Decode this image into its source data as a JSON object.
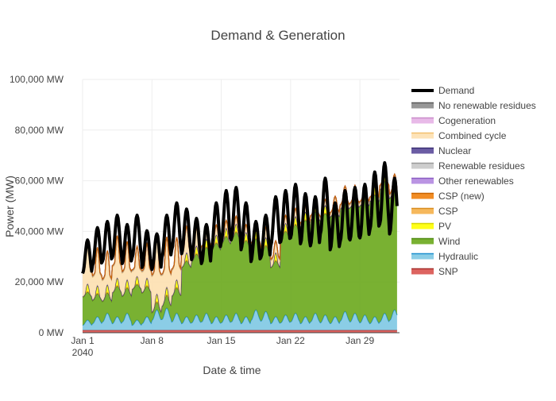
{
  "chart_data": {
    "type": "area",
    "title": "Demand & Generation",
    "xlabel": "Date & time",
    "ylabel": "Power (MW)",
    "ylim": [
      0,
      100000
    ],
    "yticks": [
      0,
      20000,
      40000,
      60000,
      80000,
      100000
    ],
    "ytick_labels": [
      "0 MW",
      "20,000 MW",
      "40,000 MW",
      "60,000 MW",
      "80,000 MW",
      "100,000 MW"
    ],
    "xlim": [
      "2040-01-01",
      "2040-02-02"
    ],
    "xticks": [
      "2040-01-01",
      "2040-01-08",
      "2040-01-15",
      "2040-01-22",
      "2040-01-29"
    ],
    "xtick_labels": [
      "Jan 1",
      "Jan 8",
      "Jan 15",
      "Jan 22",
      "Jan 29"
    ],
    "xtick_sublabel": "2040",
    "grid": true,
    "legend_position": "right",
    "x": [
      "2040-01-01",
      "2040-01-02",
      "2040-01-03",
      "2040-01-04",
      "2040-01-05",
      "2040-01-06",
      "2040-01-07",
      "2040-01-08",
      "2040-01-09",
      "2040-01-10",
      "2040-01-11",
      "2040-01-12",
      "2040-01-13",
      "2040-01-14",
      "2040-01-15",
      "2040-01-16",
      "2040-01-17",
      "2040-01-18",
      "2040-01-19",
      "2040-01-20",
      "2040-01-21",
      "2040-01-22",
      "2040-01-23",
      "2040-01-24",
      "2040-01-25",
      "2040-01-26",
      "2040-01-27",
      "2040-01-28",
      "2040-01-29",
      "2040-01-30",
      "2040-01-31",
      "2040-02-01"
    ],
    "series": [
      {
        "name": "SNP",
        "color": "#d9534f",
        "values": [
          1000,
          1000,
          1000,
          1000,
          1000,
          1000,
          1000,
          1000,
          1000,
          1000,
          1000,
          1000,
          1000,
          1000,
          1000,
          1000,
          1000,
          1000,
          1000,
          1000,
          1000,
          1000,
          1000,
          1000,
          1000,
          1000,
          1000,
          1000,
          1000,
          1000,
          1000,
          1000
        ]
      },
      {
        "name": "Hydraulic",
        "color": "#7ec8e3",
        "values": [
          3000,
          4000,
          5000,
          4000,
          5000,
          3000,
          4000,
          6000,
          6500,
          5000,
          4000,
          4500,
          5000,
          4000,
          4500,
          5000,
          4000,
          6000,
          5500,
          4000,
          4500,
          5000,
          4000,
          5000,
          4500,
          4000,
          5500,
          5000,
          4500,
          4000,
          5000,
          6000
        ]
      },
      {
        "name": "Wind",
        "color": "#6aa91c",
        "values": [
          11000,
          9000,
          8000,
          12000,
          10000,
          14000,
          12000,
          3000,
          5000,
          10000,
          22000,
          24000,
          26000,
          29000,
          31000,
          32000,
          30000,
          28000,
          26000,
          22000,
          33000,
          35000,
          38000,
          40000,
          40000,
          42000,
          44000,
          45000,
          46000,
          48000,
          52000,
          48000
        ]
      },
      {
        "name": "CSP",
        "color": "#f5b04a",
        "values": [
          300,
          300,
          300,
          300,
          300,
          300,
          300,
          300,
          300,
          300,
          300,
          300,
          300,
          300,
          300,
          300,
          300,
          300,
          300,
          300,
          300,
          300,
          300,
          300,
          300,
          300,
          300,
          300,
          300,
          300,
          300,
          300
        ]
      },
      {
        "name": "PV",
        "color": "#ffff00",
        "values": [
          1500,
          1500,
          1500,
          1500,
          1500,
          1500,
          1500,
          1500,
          1500,
          1500,
          1500,
          1500,
          1500,
          1500,
          1500,
          1500,
          1500,
          1500,
          1500,
          1500,
          1500,
          1500,
          1500,
          1500,
          1500,
          1500,
          1500,
          1500,
          1500,
          1500,
          1500,
          1500
        ]
      },
      {
        "name": "Nuclear",
        "color": "#5b4b9a",
        "values": [
          0,
          0,
          0,
          0,
          0,
          0,
          0,
          0,
          0,
          0,
          0,
          0,
          0,
          0,
          0,
          0,
          0,
          0,
          0,
          0,
          0,
          0,
          0,
          0,
          0,
          0,
          0,
          0,
          0,
          0,
          0,
          0
        ]
      },
      {
        "name": "Combined cycle",
        "color": "#fde0b0",
        "values": [
          10000,
          9000,
          8000,
          10000,
          9000,
          7000,
          8000,
          14000,
          12000,
          10000,
          6000,
          4000,
          3000,
          2000,
          1500,
          1500,
          1500,
          1500,
          2000,
          2500,
          1500,
          1500,
          1000,
          1000,
          1000,
          1000,
          1000,
          1000,
          1000,
          1000,
          1000,
          1000
        ]
      },
      {
        "name": "Renewable residues",
        "color": "#c8c8c8",
        "values": [
          300,
          300,
          300,
          300,
          300,
          300,
          300,
          300,
          300,
          300,
          300,
          300,
          300,
          300,
          300,
          300,
          300,
          300,
          300,
          300,
          300,
          300,
          300,
          300,
          300,
          300,
          300,
          300,
          300,
          300,
          300,
          300
        ]
      },
      {
        "name": "No renewable residues",
        "color": "#8c8c8c",
        "values": [
          300,
          300,
          300,
          300,
          300,
          300,
          300,
          300,
          300,
          300,
          300,
          300,
          300,
          300,
          300,
          300,
          300,
          300,
          300,
          300,
          300,
          300,
          300,
          300,
          300,
          300,
          300,
          300,
          300,
          300,
          300,
          300
        ]
      },
      {
        "name": "Cogeneration",
        "color": "#e6b3e6",
        "values": [
          0,
          0,
          0,
          0,
          0,
          0,
          0,
          0,
          0,
          0,
          0,
          0,
          0,
          0,
          0,
          0,
          0,
          0,
          0,
          0,
          0,
          0,
          0,
          0,
          0,
          0,
          0,
          0,
          0,
          0,
          0,
          0
        ]
      },
      {
        "name": "Other renewables",
        "color": "#b388e0",
        "values": [
          0,
          0,
          0,
          0,
          0,
          0,
          0,
          0,
          0,
          0,
          0,
          0,
          0,
          0,
          0,
          0,
          0,
          0,
          0,
          0,
          0,
          0,
          0,
          0,
          0,
          0,
          0,
          0,
          0,
          0,
          0,
          0
        ]
      },
      {
        "name": "CSP (new)",
        "color": "#f07f0c",
        "values": [
          0,
          0,
          0,
          0,
          0,
          0,
          0,
          0,
          0,
          0,
          0,
          0,
          0,
          0,
          0,
          0,
          0,
          0,
          0,
          0,
          0,
          0,
          0,
          0,
          0,
          0,
          0,
          0,
          0,
          0,
          0,
          0
        ]
      },
      {
        "name": "Demand",
        "color": "#000000",
        "values": [
          30000,
          34000,
          36000,
          38000,
          35000,
          38000,
          33000,
          32000,
          38000,
          42000,
          40000,
          37000,
          35000,
          42000,
          46000,
          47000,
          42000,
          36000,
          38000,
          44000,
          46000,
          48000,
          45000,
          44000,
          50000,
          42000,
          46000,
          47000,
          48000,
          52000,
          55000,
          50000
        ]
      }
    ]
  },
  "legend": {
    "items": [
      {
        "name": "Demand",
        "color": "#000000",
        "edge": "#000000"
      },
      {
        "name": "No renewable residues",
        "color": "#8c8c8c",
        "edge": "#5a5a5a"
      },
      {
        "name": "Cogeneration",
        "color": "#e6b3e6",
        "edge": "#c98cc9"
      },
      {
        "name": "Combined cycle",
        "color": "#fde0b0",
        "edge": "#f3c06e"
      },
      {
        "name": "Nuclear",
        "color": "#5b4b9a",
        "edge": "#3a2f73"
      },
      {
        "name": "Renewable residues",
        "color": "#c8c8c8",
        "edge": "#9a9a9a"
      },
      {
        "name": "Other renewables",
        "color": "#b388e0",
        "edge": "#8a5cc2"
      },
      {
        "name": "CSP (new)",
        "color": "#f07f0c",
        "edge": "#c96500"
      },
      {
        "name": "CSP",
        "color": "#f5b04a",
        "edge": "#d98d1f"
      },
      {
        "name": "PV",
        "color": "#ffff00",
        "edge": "#d6d600"
      },
      {
        "name": "Wind",
        "color": "#6aa91c",
        "edge": "#4f8a10"
      },
      {
        "name": "Hydraulic",
        "color": "#7ec8e3",
        "edge": "#1f8fcf"
      },
      {
        "name": "SNP",
        "color": "#d9534f",
        "edge": "#a8322e"
      }
    ]
  }
}
